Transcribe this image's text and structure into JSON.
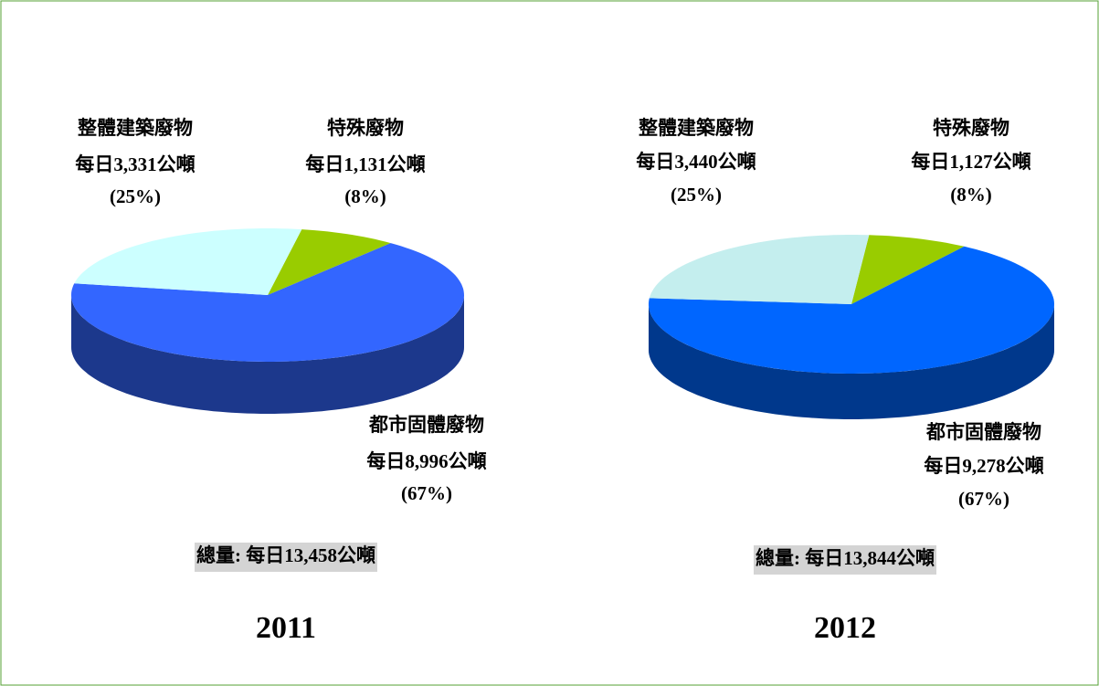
{
  "chart_data": [
    {
      "type": "pie",
      "title": "2011",
      "categories": [
        "特殊廢物",
        "都市固體廢物",
        "整體建築廢物"
      ],
      "amounts": [
        "每日1,131公噸",
        "每日8,996公噸",
        "每日3,331公噸"
      ],
      "values": [
        8,
        67,
        25
      ],
      "value_labels": [
        "(8%)",
        "(67%)",
        "(25%)"
      ],
      "colors": [
        "#99cc00",
        "#3366ff",
        "#ccffff"
      ],
      "total": "總量: 每日13,458公噸"
    },
    {
      "type": "pie",
      "title": "2012",
      "categories": [
        "特殊廢物",
        "都市固體廢物",
        "整體建築廢物"
      ],
      "amounts": [
        "每日1,127公噸",
        "每日9,278公噸",
        "每日3,440公噸"
      ],
      "values": [
        8,
        67,
        25
      ],
      "value_labels": [
        "(8%)",
        "(67%)",
        "(25%)"
      ],
      "colors": [
        "#99cc00",
        "#0066ff",
        "#c4eeee"
      ],
      "total": "總量: 每日13,844公噸"
    }
  ]
}
